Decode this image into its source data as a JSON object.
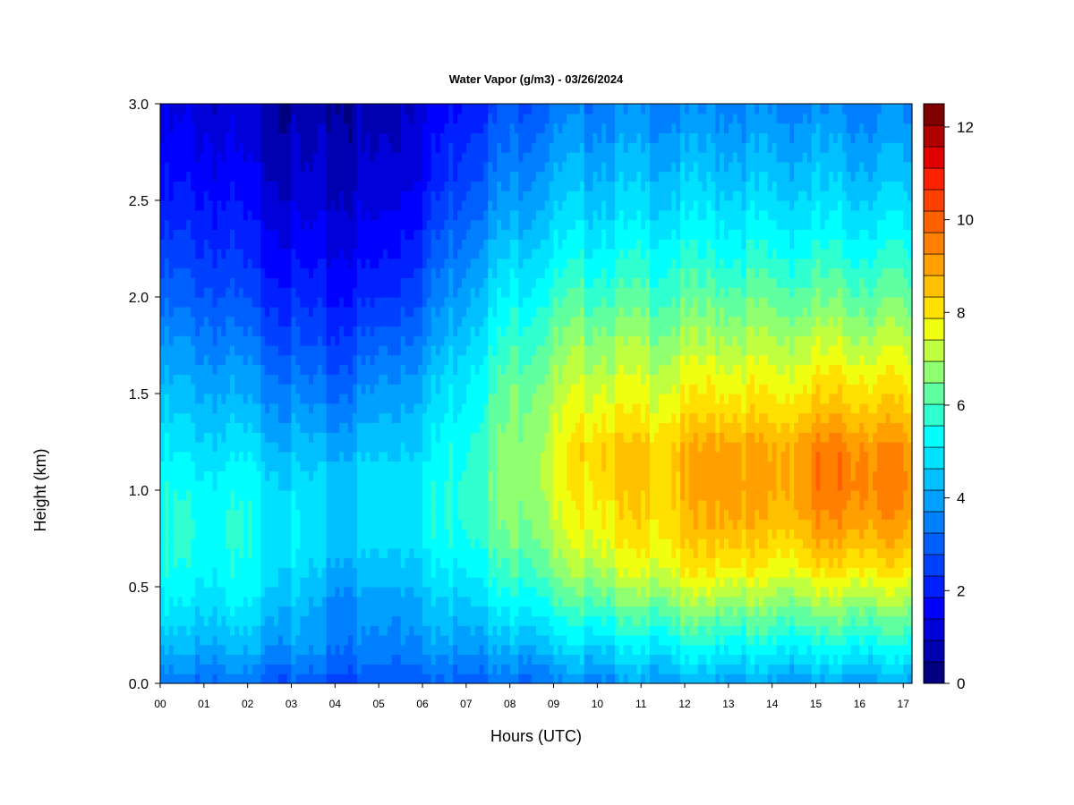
{
  "chart_data": {
    "type": "heatmap",
    "title": "Water Vapor (g/m3) - 03/26/2024",
    "xlabel": "Hours (UTC)",
    "ylabel": "Height (km)",
    "x_ticks": [
      "00",
      "01",
      "02",
      "03",
      "04",
      "05",
      "06",
      "07",
      "08",
      "09",
      "10",
      "11",
      "12",
      "13",
      "14",
      "15",
      "16",
      "17"
    ],
    "xlim": [
      0,
      17.2
    ],
    "y_ticks": [
      "0.0",
      "0.5",
      "1.0",
      "1.5",
      "2.0",
      "2.5",
      "3.0"
    ],
    "ylim": [
      0,
      3.0
    ],
    "colorbar": {
      "range": [
        0,
        12.5
      ],
      "step": 0.5,
      "tick_labels": [
        "0",
        "2",
        "4",
        "6",
        "8",
        "10",
        "12"
      ],
      "colors": [
        "#000080",
        "#0000b0",
        "#0000d8",
        "#0000ff",
        "#0020ff",
        "#0040ff",
        "#0060ff",
        "#0080ff",
        "#00a0ff",
        "#00c0ff",
        "#00e0ff",
        "#00ffff",
        "#30ffd0",
        "#60ffa0",
        "#90ff70",
        "#c0ff40",
        "#f0ff10",
        "#ffe000",
        "#ffc000",
        "#ffa000",
        "#ff8000",
        "#ff6000",
        "#ff4000",
        "#ff2000",
        "#e00000",
        "#b00000",
        "#800000"
      ]
    },
    "profiles": [
      {
        "hour": 0.0,
        "values": [
          3.5,
          4.5,
          5.3,
          5.8,
          6.0,
          5.8,
          5.4,
          4.9,
          4.4,
          3.8,
          3.2,
          2.7,
          2.2,
          1.8,
          1.5,
          1.2
        ]
      },
      {
        "hour": 1.0,
        "values": [
          3.6,
          4.6,
          5.3,
          5.8,
          6.0,
          5.8,
          5.3,
          4.8,
          4.3,
          3.8,
          3.2,
          2.7,
          2.3,
          1.9,
          1.6,
          1.3
        ]
      },
      {
        "hour": 2.0,
        "values": [
          3.4,
          4.5,
          5.3,
          5.7,
          5.9,
          5.7,
          5.2,
          4.6,
          4.0,
          3.4,
          2.8,
          2.3,
          1.9,
          1.5,
          1.2,
          1.0
        ]
      },
      {
        "hour": 3.0,
        "values": [
          3.1,
          4.2,
          4.7,
          5.2,
          5.4,
          5.2,
          4.7,
          4.1,
          3.5,
          2.9,
          2.3,
          1.8,
          1.4,
          1.0,
          0.8,
          0.6
        ]
      },
      {
        "hour": 4.0,
        "values": [
          2.9,
          3.7,
          3.9,
          4.5,
          5.0,
          4.9,
          4.5,
          3.8,
          3.1,
          2.5,
          2.0,
          1.6,
          1.2,
          0.9,
          0.7,
          0.6
        ]
      },
      {
        "hour": 5.0,
        "values": [
          3.0,
          3.8,
          4.1,
          4.8,
          5.2,
          5.3,
          4.9,
          4.4,
          3.8,
          3.1,
          2.4,
          1.9,
          1.5,
          1.1,
          0.9,
          0.8
        ]
      },
      {
        "hour": 6.0,
        "values": [
          3.3,
          4.2,
          4.6,
          5.2,
          5.6,
          5.6,
          5.3,
          4.9,
          4.4,
          3.8,
          3.2,
          2.7,
          2.2,
          1.8,
          1.5,
          1.3
        ]
      },
      {
        "hour": 7.0,
        "values": [
          3.4,
          4.4,
          5.1,
          5.8,
          6.3,
          6.4,
          6.2,
          5.9,
          5.6,
          5.1,
          4.6,
          4.1,
          3.6,
          3.1,
          2.7,
          2.3
        ]
      },
      {
        "hour": 8.0,
        "values": [
          3.4,
          4.6,
          5.6,
          6.4,
          7.0,
          7.2,
          7.2,
          7.0,
          6.6,
          6.1,
          5.6,
          5.0,
          4.4,
          3.9,
          3.4,
          3.0
        ]
      },
      {
        "hour": 9.0,
        "values": [
          3.7,
          5.0,
          6.1,
          7.0,
          7.6,
          7.9,
          7.9,
          7.7,
          7.3,
          6.8,
          6.2,
          5.6,
          5.0,
          4.5,
          4.0,
          3.5
        ]
      },
      {
        "hour": 10.0,
        "values": [
          4.0,
          5.3,
          6.6,
          7.8,
          8.5,
          8.9,
          9.2,
          8.5,
          7.9,
          7.3,
          6.6,
          5.9,
          5.3,
          4.8,
          4.3,
          3.8
        ]
      },
      {
        "hour": 11.0,
        "values": [
          4.2,
          5.5,
          6.8,
          8.0,
          8.7,
          8.9,
          9.0,
          8.3,
          7.8,
          7.2,
          6.5,
          5.9,
          5.3,
          4.8,
          4.3,
          3.8
        ]
      },
      {
        "hour": 12.0,
        "values": [
          4.4,
          5.8,
          7.2,
          8.4,
          9.0,
          9.2,
          9.3,
          8.6,
          8.0,
          7.3,
          6.6,
          6.0,
          5.4,
          4.9,
          4.3,
          3.8
        ]
      },
      {
        "hour": 13.0,
        "values": [
          4.4,
          5.9,
          7.3,
          8.7,
          9.6,
          10.1,
          10.0,
          9.0,
          8.3,
          7.5,
          6.8,
          6.1,
          5.5,
          4.9,
          4.4,
          3.9
        ]
      },
      {
        "hour": 14.0,
        "values": [
          4.2,
          5.7,
          7.0,
          8.2,
          9.0,
          9.4,
          9.4,
          8.7,
          8.0,
          7.4,
          6.7,
          6.0,
          5.4,
          4.8,
          4.3,
          3.8
        ]
      },
      {
        "hour": 15.0,
        "values": [
          4.3,
          5.8,
          7.2,
          8.6,
          9.6,
          10.2,
          10.2,
          9.2,
          8.4,
          7.6,
          6.8,
          6.1,
          5.4,
          4.9,
          4.4,
          3.9
        ]
      },
      {
        "hour": 16.0,
        "values": [
          4.3,
          5.9,
          7.3,
          8.8,
          9.8,
          10.3,
          10.2,
          9.3,
          8.5,
          7.6,
          6.8,
          6.1,
          5.4,
          4.8,
          4.3,
          3.8
        ]
      },
      {
        "hour": 17.2,
        "values": [
          4.3,
          5.9,
          7.2,
          8.6,
          9.5,
          10.0,
          9.9,
          9.0,
          8.3,
          7.5,
          6.8,
          6.1,
          5.4,
          4.8,
          4.3,
          3.8
        ]
      }
    ],
    "profile_heights_km": [
      0.0,
      0.2,
      0.4,
      0.6,
      0.8,
      1.0,
      1.2,
      1.4,
      1.6,
      1.8,
      2.0,
      2.2,
      2.4,
      2.6,
      2.8,
      3.0
    ],
    "legend": "colorbar-right",
    "grid": false
  }
}
